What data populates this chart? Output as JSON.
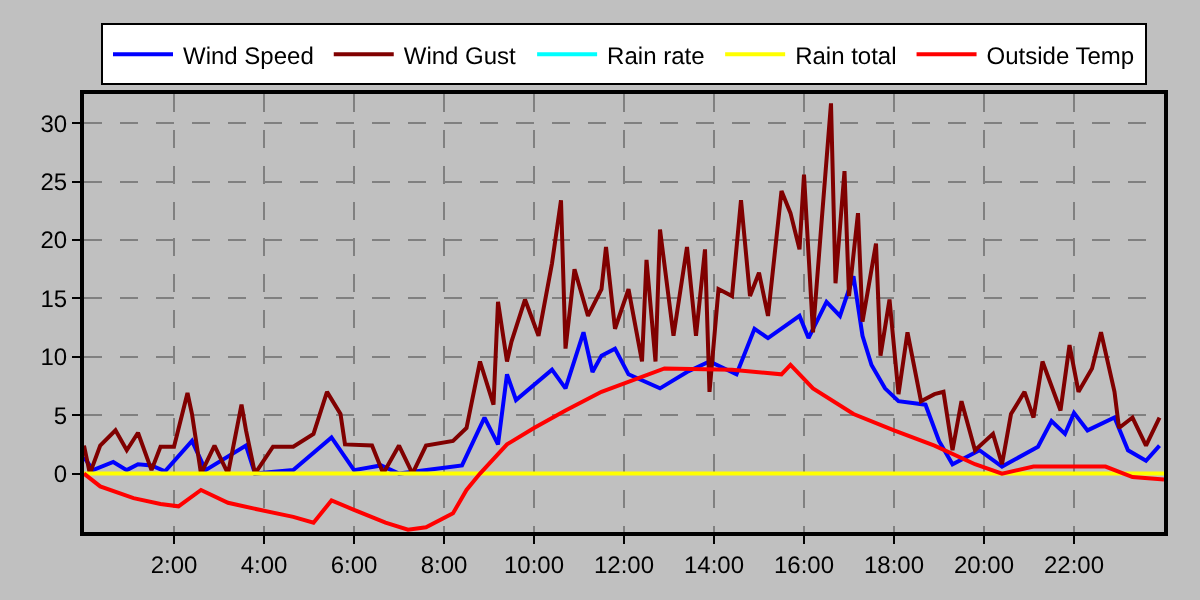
{
  "chart_data": {
    "type": "line",
    "xlim": [
      0,
      24
    ],
    "xticks": [
      {
        "value": 2,
        "label": "2:00"
      },
      {
        "value": 4,
        "label": "4:00"
      },
      {
        "value": 6,
        "label": "6:00"
      },
      {
        "value": 8,
        "label": "8:00"
      },
      {
        "value": 10,
        "label": "10:00"
      },
      {
        "value": 12,
        "label": "12:00"
      },
      {
        "value": 14,
        "label": "14:00"
      },
      {
        "value": 16,
        "label": "16:00"
      },
      {
        "value": 18,
        "label": "18:00"
      },
      {
        "value": 20,
        "label": "20:00"
      },
      {
        "value": 22,
        "label": "22:00"
      }
    ],
    "ylim": [
      -5,
      32.5
    ],
    "yticks": [
      0,
      5,
      10,
      15,
      20,
      25,
      30
    ],
    "grid": true,
    "legend": "top",
    "marker": "none",
    "line_style": "solid",
    "series": [
      {
        "name": "Wind Speed",
        "color": "#0000ff",
        "x": [
          0,
          0.2,
          0.65,
          0.95,
          1.2,
          1.5,
          1.8,
          2.4,
          2.7,
          3.6,
          3.8,
          4.65,
          5.5,
          6.0,
          6.6,
          7.0,
          8.4,
          8.9,
          9.2,
          9.4,
          9.6,
          10.4,
          10.7,
          11.1,
          11.3,
          11.5,
          11.8,
          12.1,
          12.8,
          13.4,
          13.9,
          14.5,
          14.9,
          15.2,
          15.9,
          16.1,
          16.5,
          16.8,
          17.1,
          17.3,
          17.5,
          17.8,
          18.1,
          18.7,
          19.0,
          19.3,
          19.9,
          20.4,
          21.2,
          21.5,
          21.8,
          22.0,
          22.3,
          22.9,
          23.2,
          23.6,
          23.9
        ],
        "values": [
          1.4,
          0.3,
          1.0,
          0.3,
          0.8,
          0.7,
          0.2,
          2.8,
          0.3,
          2.4,
          0,
          0.3,
          3.1,
          0.3,
          0.7,
          0,
          0.7,
          4.8,
          2.5,
          8.5,
          6.3,
          8.9,
          7.3,
          12.1,
          8.7,
          10.1,
          10.7,
          8.5,
          7.3,
          8.7,
          9.6,
          8.5,
          12.4,
          11.6,
          13.5,
          11.6,
          14.7,
          13.5,
          16.9,
          11.8,
          9.3,
          7.3,
          6.2,
          5.9,
          2.8,
          0.8,
          2.0,
          0.6,
          2.3,
          4.5,
          3.4,
          5.2,
          3.7,
          4.8,
          2.0,
          1.1,
          2.4
        ]
      },
      {
        "name": "Wind Gust",
        "color": "#800000",
        "x": [
          0,
          0.13,
          0.36,
          0.7,
          0.95,
          1.2,
          1.5,
          1.7,
          2.0,
          2.3,
          2.4,
          2.6,
          2.9,
          3.2,
          3.5,
          3.6,
          3.8,
          4.2,
          4.65,
          5.1,
          5.4,
          5.7,
          5.8,
          6.4,
          6.65,
          7.0,
          7.3,
          7.6,
          8.2,
          8.5,
          8.8,
          9.1,
          9.2,
          9.4,
          9.5,
          9.8,
          10.1,
          10.4,
          10.6,
          10.7,
          10.9,
          11.2,
          11.5,
          11.6,
          11.8,
          12.1,
          12.4,
          12.5,
          12.7,
          12.8,
          13.1,
          13.4,
          13.6,
          13.8,
          13.9,
          14.1,
          14.4,
          14.6,
          14.8,
          15.0,
          15.2,
          15.5,
          15.7,
          15.9,
          16.0,
          16.2,
          16.4,
          16.6,
          16.7,
          16.9,
          17.0,
          17.2,
          17.3,
          17.6,
          17.7,
          17.9,
          18.1,
          18.3,
          18.6,
          18.9,
          19.1,
          19.3,
          19.5,
          19.8,
          20.2,
          20.4,
          20.6,
          20.9,
          21.1,
          21.3,
          21.7,
          21.9,
          22.1,
          22.4,
          22.6,
          22.9,
          23.0,
          23.3,
          23.6,
          23.9
        ],
        "values": [
          2.4,
          0,
          2.4,
          3.7,
          2.0,
          3.5,
          0.3,
          2.3,
          2.3,
          6.9,
          5.1,
          0,
          2.4,
          0,
          5.9,
          3.7,
          0,
          2.3,
          2.3,
          3.4,
          7.0,
          5.1,
          2.5,
          2.4,
          0,
          2.4,
          0,
          2.4,
          2.8,
          3.9,
          9.6,
          5.9,
          14.7,
          9.6,
          11.3,
          14.9,
          11.8,
          18.0,
          23.4,
          10.7,
          17.5,
          13.5,
          15.8,
          19.4,
          12.4,
          15.8,
          9.6,
          18.3,
          9.6,
          20.9,
          11.8,
          19.4,
          11.8,
          19.2,
          7.0,
          15.8,
          15.2,
          23.4,
          15.2,
          17.2,
          13.5,
          24.2,
          22.3,
          19.2,
          25.6,
          12.1,
          22.0,
          31.7,
          16.3,
          25.9,
          15.2,
          22.3,
          13.0,
          19.7,
          10.1,
          14.9,
          6.8,
          12.1,
          6.2,
          6.8,
          7.0,
          2.0,
          6.2,
          2.0,
          3.4,
          0.8,
          5.1,
          7.0,
          4.8,
          9.6,
          5.4,
          11.0,
          7.0,
          9.0,
          12.1,
          7.0,
          3.9,
          4.8,
          2.4,
          4.8
        ]
      },
      {
        "name": "Rain rate",
        "color": "#00ffff",
        "values": [
          null
        ]
      },
      {
        "name": "Rain total",
        "color": "#ffff00",
        "x": [
          0,
          24
        ],
        "values": [
          0,
          0
        ]
      },
      {
        "name": "Outside Temp",
        "color": "#ff0000",
        "x": [
          0,
          0.36,
          1.1,
          1.7,
          2.1,
          2.6,
          3.2,
          3.9,
          4.65,
          5.1,
          5.5,
          6.0,
          6.7,
          7.2,
          7.6,
          8.2,
          8.5,
          8.8,
          9.4,
          10.0,
          10.7,
          11.5,
          12.9,
          14.4,
          15.5,
          15.7,
          16.2,
          17.1,
          18.0,
          18.9,
          19.8,
          20.4,
          21.1,
          22.7,
          23.3,
          24
        ],
        "values": [
          0,
          -1.1,
          -2.1,
          -2.6,
          -2.8,
          -1.4,
          -2.5,
          -3.1,
          -3.7,
          -4.2,
          -2.3,
          -3.1,
          -4.2,
          -4.8,
          -4.6,
          -3.4,
          -1.4,
          0,
          2.5,
          3.9,
          5.4,
          7.0,
          9.0,
          8.9,
          8.5,
          9.3,
          7.3,
          5.1,
          3.7,
          2.4,
          0.8,
          0,
          0.6,
          0.6,
          -0.3,
          -0.5
        ]
      }
    ]
  }
}
